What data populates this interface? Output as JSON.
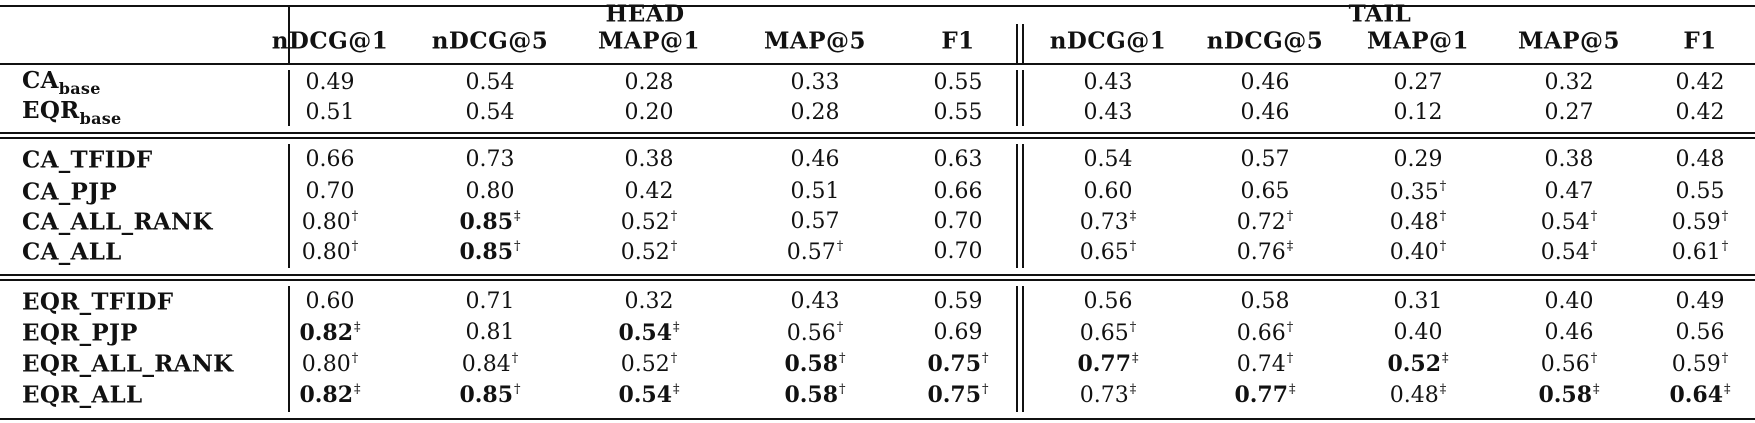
{
  "table": {
    "groups": [
      "HEAD",
      "TAIL"
    ],
    "metrics": [
      "nDCG@1",
      "nDCG@5",
      "MAP@1",
      "MAP@5",
      "F1"
    ],
    "sections": [
      [
        {
          "name": "CA",
          "sub": "base",
          "cells": [
            {
              "v": "0.49",
              "b": false,
              "m": ""
            },
            {
              "v": "0.54",
              "b": false,
              "m": ""
            },
            {
              "v": "0.28",
              "b": false,
              "m": ""
            },
            {
              "v": "0.33",
              "b": false,
              "m": ""
            },
            {
              "v": "0.55",
              "b": false,
              "m": ""
            },
            {
              "v": "0.43",
              "b": false,
              "m": ""
            },
            {
              "v": "0.46",
              "b": false,
              "m": ""
            },
            {
              "v": "0.27",
              "b": false,
              "m": ""
            },
            {
              "v": "0.32",
              "b": false,
              "m": ""
            },
            {
              "v": "0.42",
              "b": false,
              "m": ""
            }
          ]
        },
        {
          "name": "EQR",
          "sub": "base",
          "cells": [
            {
              "v": "0.51",
              "b": false,
              "m": ""
            },
            {
              "v": "0.54",
              "b": false,
              "m": ""
            },
            {
              "v": "0.20",
              "b": false,
              "m": ""
            },
            {
              "v": "0.28",
              "b": false,
              "m": ""
            },
            {
              "v": "0.55",
              "b": false,
              "m": ""
            },
            {
              "v": "0.43",
              "b": false,
              "m": ""
            },
            {
              "v": "0.46",
              "b": false,
              "m": ""
            },
            {
              "v": "0.12",
              "b": false,
              "m": ""
            },
            {
              "v": "0.27",
              "b": false,
              "m": ""
            },
            {
              "v": "0.42",
              "b": false,
              "m": ""
            }
          ]
        }
      ],
      [
        {
          "name": "CA_TFIDF",
          "sub": "",
          "cells": [
            {
              "v": "0.66",
              "b": false,
              "m": ""
            },
            {
              "v": "0.73",
              "b": false,
              "m": ""
            },
            {
              "v": "0.38",
              "b": false,
              "m": ""
            },
            {
              "v": "0.46",
              "b": false,
              "m": ""
            },
            {
              "v": "0.63",
              "b": false,
              "m": ""
            },
            {
              "v": "0.54",
              "b": false,
              "m": ""
            },
            {
              "v": "0.57",
              "b": false,
              "m": ""
            },
            {
              "v": "0.29",
              "b": false,
              "m": ""
            },
            {
              "v": "0.38",
              "b": false,
              "m": ""
            },
            {
              "v": "0.48",
              "b": false,
              "m": ""
            }
          ]
        },
        {
          "name": "CA_PJP",
          "sub": "",
          "cells": [
            {
              "v": "0.70",
              "b": false,
              "m": ""
            },
            {
              "v": "0.80",
              "b": false,
              "m": ""
            },
            {
              "v": "0.42",
              "b": false,
              "m": ""
            },
            {
              "v": "0.51",
              "b": false,
              "m": ""
            },
            {
              "v": "0.66",
              "b": false,
              "m": ""
            },
            {
              "v": "0.60",
              "b": false,
              "m": ""
            },
            {
              "v": "0.65",
              "b": false,
              "m": ""
            },
            {
              "v": "0.35",
              "b": false,
              "m": "†"
            },
            {
              "v": "0.47",
              "b": false,
              "m": ""
            },
            {
              "v": "0.55",
              "b": false,
              "m": ""
            }
          ]
        },
        {
          "name": "CA_ALL_RANK",
          "sub": "",
          "cells": [
            {
              "v": "0.80",
              "b": false,
              "m": "†"
            },
            {
              "v": "0.85",
              "b": true,
              "m": "‡"
            },
            {
              "v": "0.52",
              "b": false,
              "m": "†"
            },
            {
              "v": "0.57",
              "b": false,
              "m": ""
            },
            {
              "v": "0.70",
              "b": false,
              "m": ""
            },
            {
              "v": "0.73",
              "b": false,
              "m": "‡"
            },
            {
              "v": "0.72",
              "b": false,
              "m": "†"
            },
            {
              "v": "0.48",
              "b": false,
              "m": "†"
            },
            {
              "v": "0.54",
              "b": false,
              "m": "†"
            },
            {
              "v": "0.59",
              "b": false,
              "m": "†"
            }
          ]
        },
        {
          "name": "CA_ALL",
          "sub": "",
          "cells": [
            {
              "v": "0.80",
              "b": false,
              "m": "†"
            },
            {
              "v": "0.85",
              "b": true,
              "m": "†"
            },
            {
              "v": "0.52",
              "b": false,
              "m": "†"
            },
            {
              "v": "0.57",
              "b": false,
              "m": "†"
            },
            {
              "v": "0.70",
              "b": false,
              "m": ""
            },
            {
              "v": "0.65",
              "b": false,
              "m": "†"
            },
            {
              "v": "0.76",
              "b": false,
              "m": "‡"
            },
            {
              "v": "0.40",
              "b": false,
              "m": "†"
            },
            {
              "v": "0.54",
              "b": false,
              "m": "†"
            },
            {
              "v": "0.61",
              "b": false,
              "m": "†"
            }
          ]
        }
      ],
      [
        {
          "name": "EQR_TFIDF",
          "sub": "",
          "cells": [
            {
              "v": "0.60",
              "b": false,
              "m": ""
            },
            {
              "v": "0.71",
              "b": false,
              "m": ""
            },
            {
              "v": "0.32",
              "b": false,
              "m": ""
            },
            {
              "v": "0.43",
              "b": false,
              "m": ""
            },
            {
              "v": "0.59",
              "b": false,
              "m": ""
            },
            {
              "v": "0.56",
              "b": false,
              "m": ""
            },
            {
              "v": "0.58",
              "b": false,
              "m": ""
            },
            {
              "v": "0.31",
              "b": false,
              "m": ""
            },
            {
              "v": "0.40",
              "b": false,
              "m": ""
            },
            {
              "v": "0.49",
              "b": false,
              "m": ""
            }
          ]
        },
        {
          "name": "EQR_PJP",
          "sub": "",
          "cells": [
            {
              "v": "0.82",
              "b": true,
              "m": "‡"
            },
            {
              "v": "0.81",
              "b": false,
              "m": ""
            },
            {
              "v": "0.54",
              "b": true,
              "m": "‡"
            },
            {
              "v": "0.56",
              "b": false,
              "m": "†"
            },
            {
              "v": "0.69",
              "b": false,
              "m": ""
            },
            {
              "v": "0.65",
              "b": false,
              "m": "†"
            },
            {
              "v": "0.66",
              "b": false,
              "m": "†"
            },
            {
              "v": "0.40",
              "b": false,
              "m": ""
            },
            {
              "v": "0.46",
              "b": false,
              "m": ""
            },
            {
              "v": "0.56",
              "b": false,
              "m": ""
            }
          ]
        },
        {
          "name": "EQR_ALL_RANK",
          "sub": "",
          "cells": [
            {
              "v": "0.80",
              "b": false,
              "m": "†"
            },
            {
              "v": "0.84",
              "b": false,
              "m": "†"
            },
            {
              "v": "0.52",
              "b": false,
              "m": "†"
            },
            {
              "v": "0.58",
              "b": true,
              "m": "†"
            },
            {
              "v": "0.75",
              "b": true,
              "m": "†"
            },
            {
              "v": "0.77",
              "b": true,
              "m": "‡"
            },
            {
              "v": "0.74",
              "b": false,
              "m": "†"
            },
            {
              "v": "0.52",
              "b": true,
              "m": "‡"
            },
            {
              "v": "0.56",
              "b": false,
              "m": "†"
            },
            {
              "v": "0.59",
              "b": false,
              "m": "†"
            }
          ]
        },
        {
          "name": "EQR_ALL",
          "sub": "",
          "cells": [
            {
              "v": "0.82",
              "b": true,
              "m": "‡"
            },
            {
              "v": "0.85",
              "b": true,
              "m": "†"
            },
            {
              "v": "0.54",
              "b": true,
              "m": "‡"
            },
            {
              "v": "0.58",
              "b": true,
              "m": "†"
            },
            {
              "v": "0.75",
              "b": true,
              "m": "†"
            },
            {
              "v": "0.73",
              "b": false,
              "m": "‡"
            },
            {
              "v": "0.77",
              "b": true,
              "m": "‡"
            },
            {
              "v": "0.48",
              "b": false,
              "m": "‡"
            },
            {
              "v": "0.58",
              "b": true,
              "m": "‡"
            },
            {
              "v": "0.64",
              "b": true,
              "m": "‡"
            }
          ]
        }
      ]
    ]
  }
}
